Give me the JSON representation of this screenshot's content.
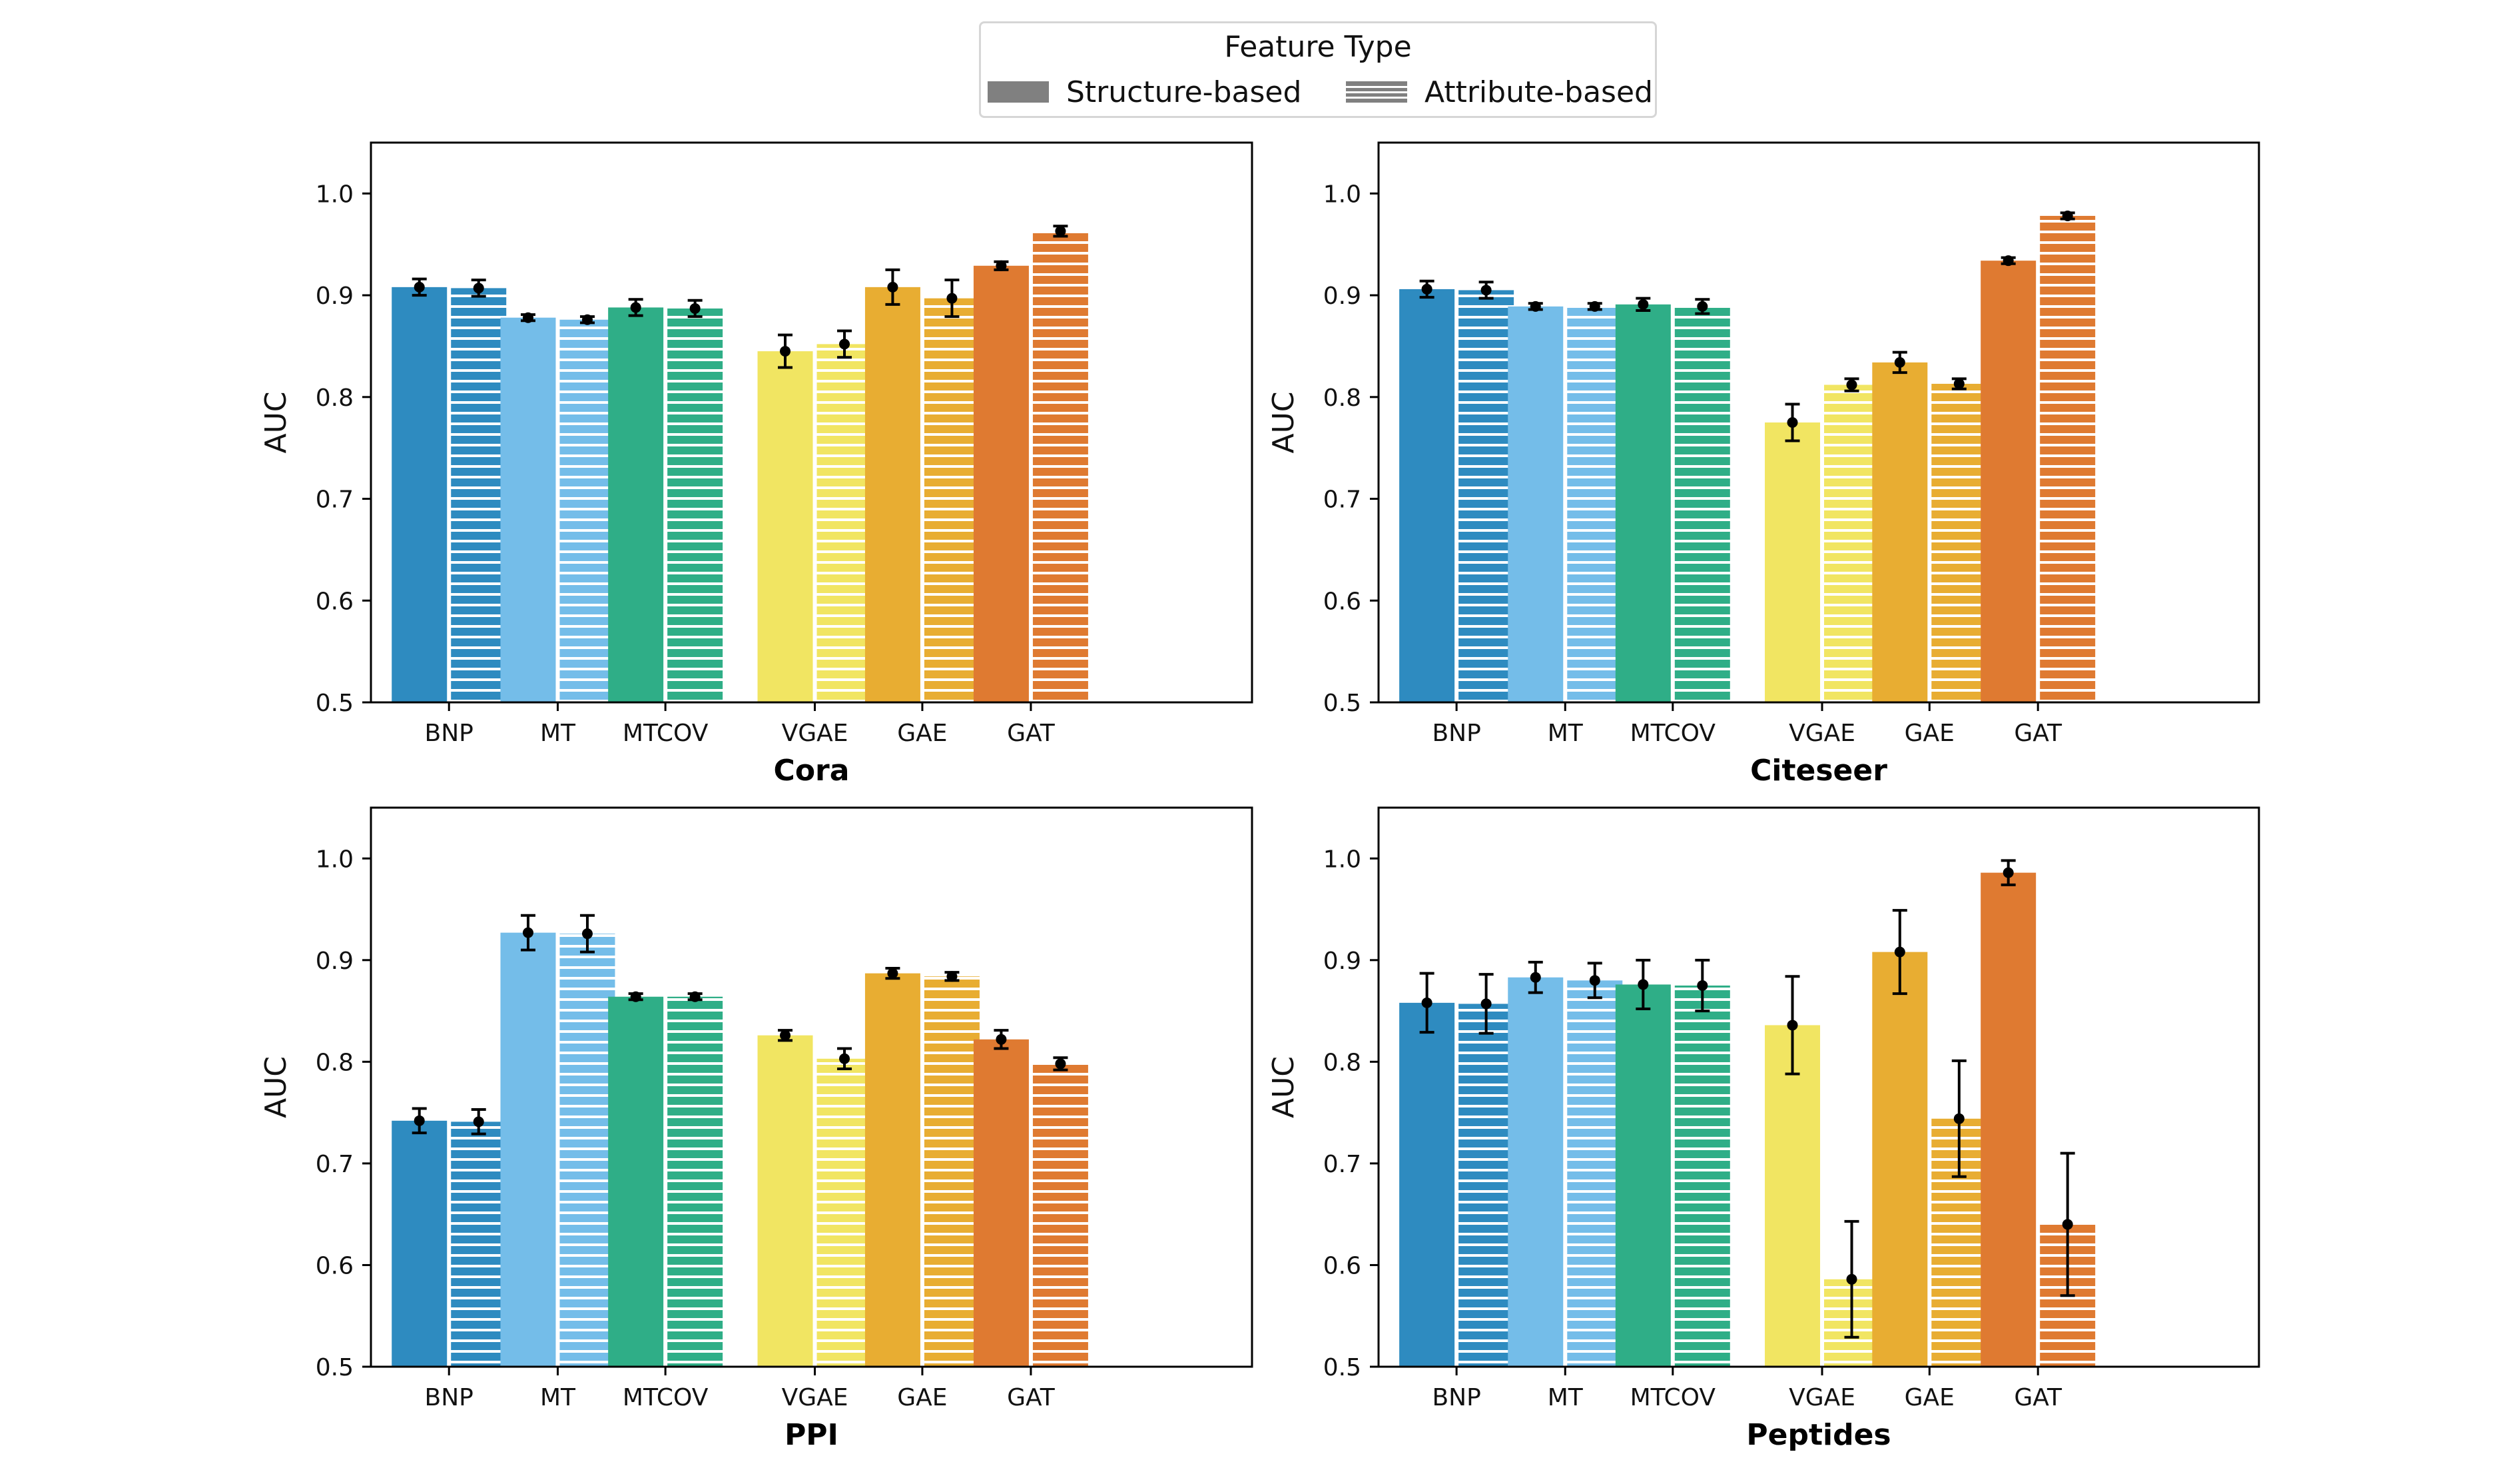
{
  "legend": {
    "title": "Feature Type",
    "items": [
      {
        "label": "Structure-based",
        "style": "solid"
      },
      {
        "label": "Attribute-based",
        "style": "hatched"
      }
    ]
  },
  "colors": {
    "BNP": "#2e8bc0",
    "MT": "#74bde9",
    "MTCOV": "#2fae87",
    "VGAE": "#f1e562",
    "GAE": "#e8ad32",
    "GAT": "#df7a31",
    "legend_swatch": "#808080"
  },
  "chart_data": [
    {
      "type": "bar",
      "title": "Cora",
      "ylabel": "AUC",
      "xlabel": "",
      "ylim": [
        0.5,
        1.05
      ],
      "yticks": [
        "0.5",
        "0.6",
        "0.7",
        "0.8",
        "0.9",
        "1.0"
      ],
      "categories": [
        "BNP",
        "MT",
        "MTCOV",
        "VGAE",
        "GAE",
        "GAT"
      ],
      "series": [
        {
          "name": "Structure-based",
          "values": [
            0.908,
            0.878,
            0.888,
            0.845,
            0.908,
            0.929
          ],
          "errors": [
            0.008,
            0.003,
            0.008,
            0.016,
            0.017,
            0.004
          ]
        },
        {
          "name": "Attribute-based",
          "values": [
            0.907,
            0.876,
            0.887,
            0.852,
            0.897,
            0.963
          ],
          "errors": [
            0.008,
            0.003,
            0.008,
            0.013,
            0.018,
            0.005
          ]
        }
      ]
    },
    {
      "type": "bar",
      "title": "Citeseer",
      "ylabel": "AUC",
      "xlabel": "",
      "ylim": [
        0.5,
        1.05
      ],
      "yticks": [
        "0.5",
        "0.6",
        "0.7",
        "0.8",
        "0.9",
        "1.0"
      ],
      "categories": [
        "BNP",
        "MT",
        "MTCOV",
        "VGAE",
        "GAE",
        "GAT"
      ],
      "series": [
        {
          "name": "Structure-based",
          "values": [
            0.906,
            0.889,
            0.891,
            0.775,
            0.834,
            0.934
          ],
          "errors": [
            0.008,
            0.003,
            0.006,
            0.018,
            0.01,
            0.003
          ]
        },
        {
          "name": "Attribute-based",
          "values": [
            0.905,
            0.889,
            0.889,
            0.812,
            0.813,
            0.978
          ],
          "errors": [
            0.008,
            0.003,
            0.007,
            0.006,
            0.005,
            0.003
          ]
        }
      ]
    },
    {
      "type": "bar",
      "title": "PPI",
      "ylabel": "AUC",
      "xlabel": "",
      "ylim": [
        0.5,
        1.05
      ],
      "yticks": [
        "0.5",
        "0.6",
        "0.7",
        "0.8",
        "0.9",
        "1.0"
      ],
      "categories": [
        "BNP",
        "MT",
        "MTCOV",
        "VGAE",
        "GAE",
        "GAT"
      ],
      "series": [
        {
          "name": "Structure-based",
          "values": [
            0.742,
            0.927,
            0.864,
            0.826,
            0.887,
            0.822
          ],
          "errors": [
            0.012,
            0.017,
            0.003,
            0.005,
            0.005,
            0.009
          ]
        },
        {
          "name": "Attribute-based",
          "values": [
            0.741,
            0.926,
            0.864,
            0.803,
            0.884,
            0.798
          ],
          "errors": [
            0.012,
            0.018,
            0.003,
            0.01,
            0.004,
            0.006
          ]
        }
      ]
    },
    {
      "type": "bar",
      "title": "Peptides",
      "ylabel": "AUC",
      "xlabel": "",
      "ylim": [
        0.5,
        1.05
      ],
      "yticks": [
        "0.5",
        "0.6",
        "0.7",
        "0.8",
        "0.9",
        "1.0"
      ],
      "categories": [
        "BNP",
        "MT",
        "MTCOV",
        "VGAE",
        "GAE",
        "GAT"
      ],
      "series": [
        {
          "name": "Structure-based",
          "values": [
            0.858,
            0.883,
            0.876,
            0.836,
            0.908,
            0.986
          ],
          "errors": [
            0.029,
            0.015,
            0.024,
            0.048,
            0.041,
            0.012
          ]
        },
        {
          "name": "Attribute-based",
          "values": [
            0.857,
            0.88,
            0.875,
            0.586,
            0.744,
            0.64
          ],
          "errors": [
            0.029,
            0.017,
            0.025,
            0.057,
            0.057,
            0.07
          ]
        }
      ]
    }
  ]
}
